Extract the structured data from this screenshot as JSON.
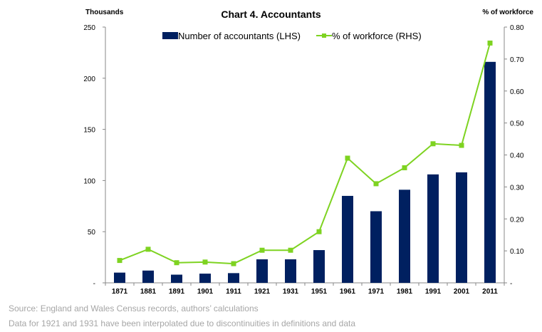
{
  "chart_data": {
    "type": "bar",
    "title": "Chart 4. Accountants",
    "left_axis_unit": "Thousands",
    "right_axis_unit": "% of workforce",
    "categories": [
      "1871",
      "1881",
      "1891",
      "1901",
      "1911",
      "1921",
      "1931",
      "1951",
      "1961",
      "1971",
      "1981",
      "1991",
      "2001",
      "2011"
    ],
    "series": [
      {
        "name": "Number of accountants (LHS)",
        "kind": "bar",
        "axis": "left",
        "color": "#002060",
        "values": [
          10,
          12,
          8,
          9,
          9.5,
          23,
          23,
          32,
          85,
          70,
          91,
          106,
          108,
          216
        ]
      },
      {
        "name": "% of workforce (RHS)",
        "kind": "line",
        "axis": "right",
        "color": "#7ed321",
        "values": [
          0.07,
          0.105,
          0.063,
          0.065,
          0.06,
          0.102,
          0.102,
          0.16,
          0.39,
          0.31,
          0.36,
          0.435,
          0.43,
          0.75
        ]
      }
    ],
    "ylim_left": [
      0,
      250
    ],
    "yticks_left": [
      "-",
      "50",
      "100",
      "150",
      "200",
      "250"
    ],
    "ylim_right": [
      0,
      0.8
    ],
    "yticks_right": [
      "-",
      "0.10",
      "0.20",
      "0.30",
      "0.40",
      "0.50",
      "0.60",
      "0.70",
      "0.80"
    ],
    "grid": false,
    "legend_position": "top"
  },
  "notes": {
    "source": "Source: England and Wales Census records, authors’ calculations",
    "interpolation": "Data for 1921 and 1931 have been interpolated due to discontinuities in definitions and data"
  },
  "colors": {
    "bar": "#002060",
    "line": "#7ed321",
    "note_text": "#a6a6a6"
  }
}
